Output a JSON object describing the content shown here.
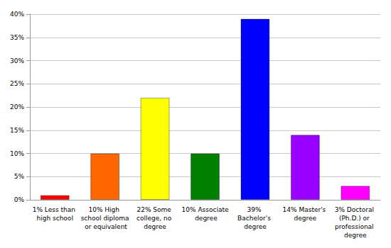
{
  "chart_data": {
    "type": "bar",
    "categories": [
      "1% Less than high school",
      "10% High school diploma or equivalent",
      "22% Some college, no degree",
      "10% Associate degree",
      "39% Bachelor's degree",
      "14% Master's degree",
      "3% Doctoral (Ph.D.) or professional degree"
    ],
    "values": [
      1,
      10,
      22,
      10,
      39,
      14,
      3
    ],
    "colors": [
      "#ff0000",
      "#ff6600",
      "#ffff00",
      "#008000",
      "#0000ff",
      "#9900ff",
      "#ff00ff"
    ],
    "ylim": [
      0,
      40
    ],
    "yticks": [
      {
        "value": 0,
        "label": "0%"
      },
      {
        "value": 5,
        "label": "5%"
      },
      {
        "value": 10,
        "label": "10%"
      },
      {
        "value": 15,
        "label": "15%"
      },
      {
        "value": 20,
        "label": "20%"
      },
      {
        "value": 25,
        "label": "25%"
      },
      {
        "value": 30,
        "label": "30%"
      },
      {
        "value": 35,
        "label": "35%"
      },
      {
        "value": 40,
        "label": "40%"
      }
    ],
    "grid": true
  }
}
